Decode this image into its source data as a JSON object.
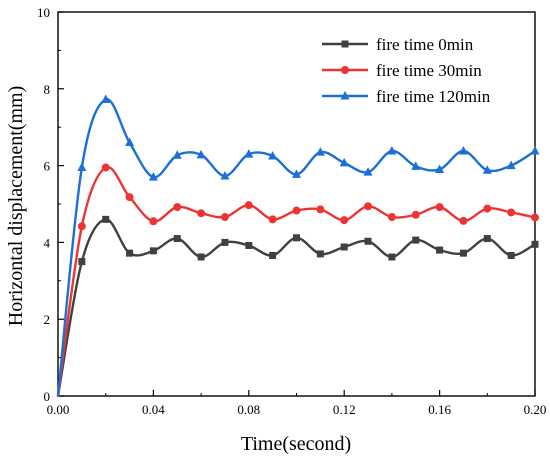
{
  "chart_data": {
    "type": "line",
    "title": "",
    "xlabel": "Time(second)",
    "ylabel": "Horizontal displacement(mm)",
    "xlim": [
      0,
      0.2
    ],
    "ylim": [
      0,
      10
    ],
    "x_ticks": [
      0,
      0.04,
      0.08,
      0.12,
      0.16,
      0.2
    ],
    "x_tick_labels": [
      "0.00",
      "0.04",
      "0.08",
      "0.12",
      "0.16",
      "0.20"
    ],
    "y_ticks": [
      0,
      2,
      4,
      6,
      8,
      10
    ],
    "y_tick_labels": [
      "0",
      "2",
      "4",
      "6",
      "8",
      "10"
    ],
    "grid": false,
    "legend_position": "top-right",
    "series": [
      {
        "name": "fire time 0min",
        "color": "#404040",
        "marker": "square",
        "x": [
          0,
          0.01,
          0.02,
          0.03,
          0.04,
          0.05,
          0.06,
          0.07,
          0.08,
          0.09,
          0.1,
          0.11,
          0.12,
          0.13,
          0.14,
          0.15,
          0.16,
          0.17,
          0.18,
          0.19,
          0.2
        ],
        "y": [
          0,
          3.5,
          4.6,
          3.72,
          3.78,
          4.1,
          3.62,
          4.0,
          3.92,
          3.66,
          4.12,
          3.7,
          3.88,
          4.03,
          3.62,
          4.06,
          3.8,
          3.72,
          4.1,
          3.66,
          3.95
        ]
      },
      {
        "name": "fire time 30min",
        "color": "#ee3333",
        "marker": "circle",
        "x": [
          0,
          0.01,
          0.02,
          0.03,
          0.04,
          0.05,
          0.06,
          0.07,
          0.08,
          0.09,
          0.1,
          0.11,
          0.12,
          0.13,
          0.14,
          0.15,
          0.16,
          0.17,
          0.18,
          0.19,
          0.2
        ],
        "y": [
          0,
          4.42,
          5.95,
          5.18,
          4.55,
          4.92,
          4.76,
          4.66,
          4.97,
          4.6,
          4.83,
          4.86,
          4.58,
          4.94,
          4.66,
          4.72,
          4.92,
          4.56,
          4.88,
          4.78,
          4.65
        ]
      },
      {
        "name": "fire time 120min",
        "color": "#1a6fd8",
        "marker": "triangle",
        "x": [
          0,
          0.01,
          0.02,
          0.03,
          0.04,
          0.05,
          0.06,
          0.07,
          0.08,
          0.09,
          0.1,
          0.11,
          0.12,
          0.13,
          0.14,
          0.15,
          0.16,
          0.17,
          0.18,
          0.19,
          0.2
        ],
        "y": [
          0,
          5.95,
          7.72,
          6.6,
          5.7,
          6.27,
          6.28,
          5.73,
          6.3,
          6.25,
          5.77,
          6.35,
          6.07,
          5.83,
          6.38,
          5.98,
          5.9,
          6.38,
          5.88,
          6.0,
          6.38
        ]
      }
    ]
  }
}
